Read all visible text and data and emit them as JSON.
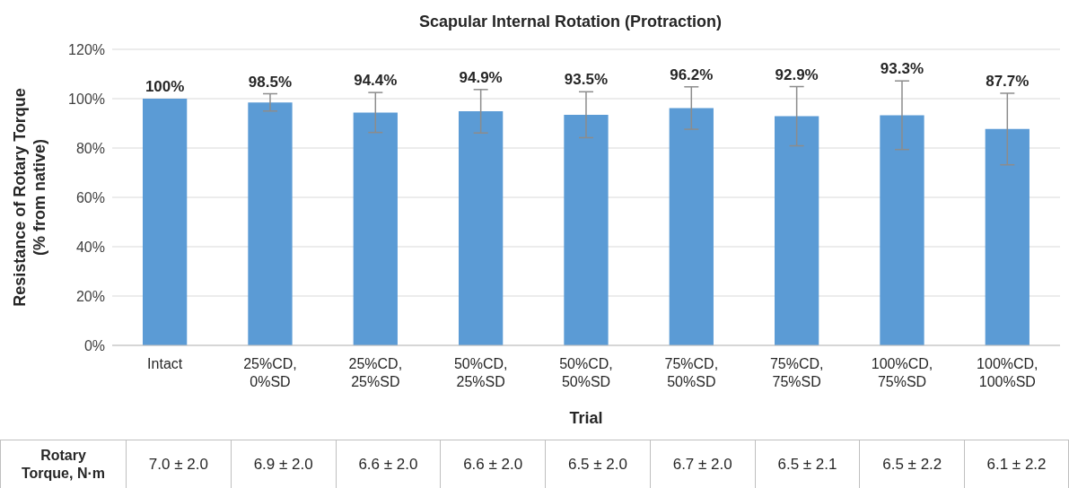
{
  "chart_data": {
    "type": "bar",
    "title": "Scapular Internal Rotation (Protraction)",
    "xlabel": "Trial",
    "ylabel": "Resistance of Rotary Torque\n(% from native)",
    "categories": [
      "Intact",
      "25%CD,\n0%SD",
      "25%CD,\n25%SD",
      "50%CD,\n25%SD",
      "50%CD,\n50%SD",
      "75%CD,\n50%SD",
      "75%CD,\n75%SD",
      "100%CD,\n75%SD",
      "100%CD,\n100%SD"
    ],
    "values": [
      100,
      98.5,
      94.4,
      94.9,
      93.5,
      96.2,
      92.9,
      93.3,
      87.7
    ],
    "errors": [
      0,
      3.5,
      8.1,
      8.8,
      9.3,
      8.6,
      12,
      13.9,
      14.5
    ],
    "value_labels": [
      "100%",
      "98.5%",
      "94.4%",
      "94.9%",
      "93.5%",
      "96.2%",
      "92.9%",
      "93.3%",
      "87.7%"
    ],
    "color": "#5b9bd5",
    "ylim": [
      0,
      120
    ],
    "yticks": [
      {
        "value": 0,
        "label": "0%"
      },
      {
        "value": 20,
        "label": "20%"
      },
      {
        "value": 40,
        "label": "40%"
      },
      {
        "value": 60,
        "label": "60%"
      },
      {
        "value": 80,
        "label": "80%"
      },
      {
        "value": 100,
        "label": "100%"
      },
      {
        "value": 120,
        "label": "120%"
      }
    ],
    "grid": "y",
    "legend": false,
    "annotations": [
      "Rotary\nTorque, N·m",
      "7.0 ± 2.0",
      "6.9 ± 2.0",
      "6.6 ± 2.0",
      "6.6 ± 2.0",
      "6.5 ± 2.0",
      "6.7 ± 2.0",
      "6.5 ± 2.1",
      "6.5 ± 2.2",
      "6.1 ± 2.2"
    ]
  }
}
